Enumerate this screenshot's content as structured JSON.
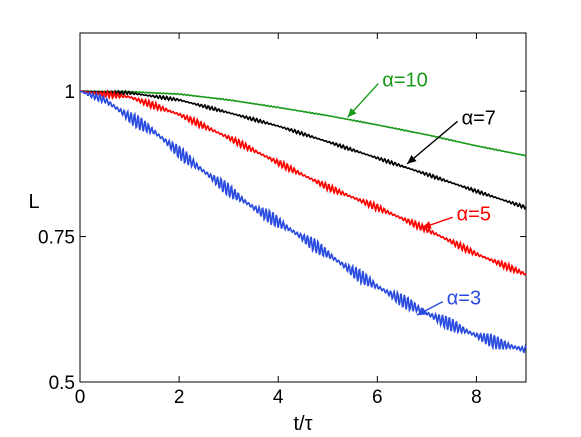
{
  "chart_data": {
    "type": "line",
    "title": "",
    "xlabel": "t/τ",
    "ylabel": "L",
    "xlim": [
      0,
      9
    ],
    "ylim": [
      0.5,
      1.1
    ],
    "xticks": [
      0,
      2,
      4,
      6,
      8
    ],
    "xtick_labels": [
      "0",
      "2",
      "4",
      "6",
      "8"
    ],
    "yticks": [
      0.5,
      0.75,
      1
    ],
    "ytick_labels": [
      "0.5",
      "0.75",
      "1"
    ],
    "grid": false,
    "legend": "none",
    "series": [
      {
        "name": "α=10",
        "color": "#1a9a1a",
        "oscillation": 0.0008,
        "x": [
          0,
          1,
          2,
          3,
          4,
          5,
          6,
          7,
          8,
          9
        ],
        "y": [
          1.0,
          0.999,
          0.995,
          0.985,
          0.972,
          0.958,
          0.942,
          0.925,
          0.906,
          0.889
        ]
      },
      {
        "name": "α=7",
        "color": "#000000",
        "oscillation": 0.003,
        "x": [
          0,
          1,
          2,
          3,
          4,
          5,
          6,
          7,
          8,
          9
        ],
        "y": [
          1.0,
          0.997,
          0.985,
          0.963,
          0.94,
          0.913,
          0.885,
          0.857,
          0.828,
          0.8
        ]
      },
      {
        "name": "α=5",
        "color": "#ff0000",
        "oscillation": 0.006,
        "x": [
          0,
          1,
          2,
          3,
          4,
          5,
          6,
          7,
          8,
          9
        ],
        "y": [
          1.0,
          0.99,
          0.96,
          0.92,
          0.877,
          0.835,
          0.8,
          0.762,
          0.72,
          0.685
        ]
      },
      {
        "name": "α=3",
        "color": "#2a4bdf",
        "oscillation": 0.012,
        "x": [
          0,
          0.5,
          1,
          1.5,
          2,
          2.5,
          3,
          3.5,
          4,
          4.5,
          5,
          5.5,
          6,
          6.5,
          7,
          7.5,
          8,
          8.5,
          9
        ],
        "y": [
          1.0,
          0.985,
          0.955,
          0.93,
          0.895,
          0.862,
          0.83,
          0.8,
          0.775,
          0.748,
          0.72,
          0.69,
          0.664,
          0.64,
          0.618,
          0.598,
          0.58,
          0.565,
          0.555
        ]
      }
    ],
    "annotations": [
      {
        "text": "α=10",
        "color": "#1a9a1a",
        "target": [
          5.4,
          0.955
        ],
        "text_at": [
          6.1,
          1.02
        ]
      },
      {
        "text": "α=7",
        "color": "#000000",
        "target": [
          6.6,
          0.875
        ],
        "text_at": [
          7.7,
          0.955
        ]
      },
      {
        "text": "α=5",
        "color": "#ff0000",
        "target": [
          6.9,
          0.765
        ],
        "text_at": [
          7.6,
          0.79
        ]
      },
      {
        "text": "α=3",
        "color": "#2a4bdf",
        "target": [
          6.8,
          0.615
        ],
        "text_at": [
          7.4,
          0.645
        ]
      }
    ]
  }
}
